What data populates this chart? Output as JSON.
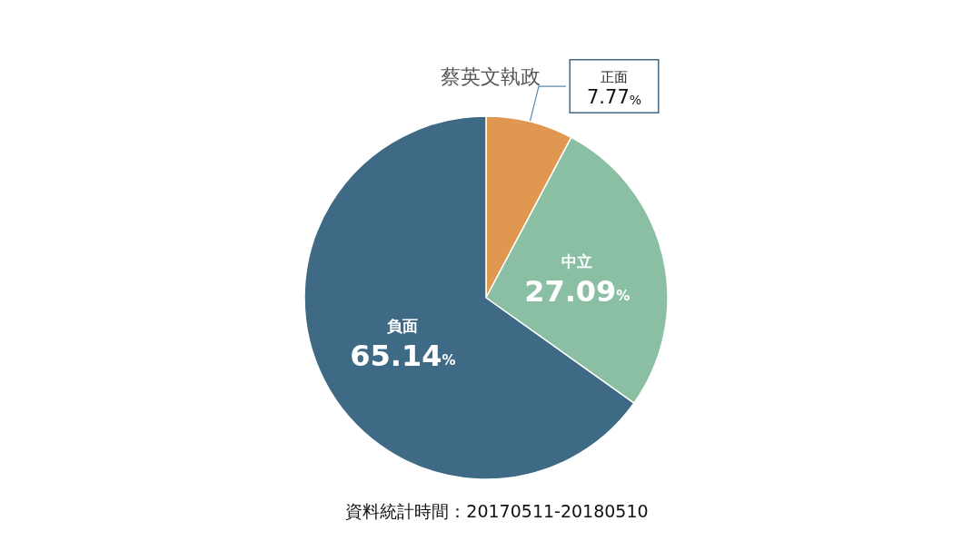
{
  "chart_data": {
    "type": "pie",
    "title": "蔡英文執政",
    "categories": [
      "正面",
      "中立",
      "負面"
    ],
    "values": [
      7.77,
      27.09,
      65.14
    ],
    "colors": [
      "#e0974f",
      "#8abfa3",
      "#3f6a85"
    ],
    "value_labels": [
      "7.77%",
      "27.09%",
      "65.14%"
    ],
    "annotations": [
      "資料統計時間：20170511-20180510"
    ],
    "legend": false
  }
}
